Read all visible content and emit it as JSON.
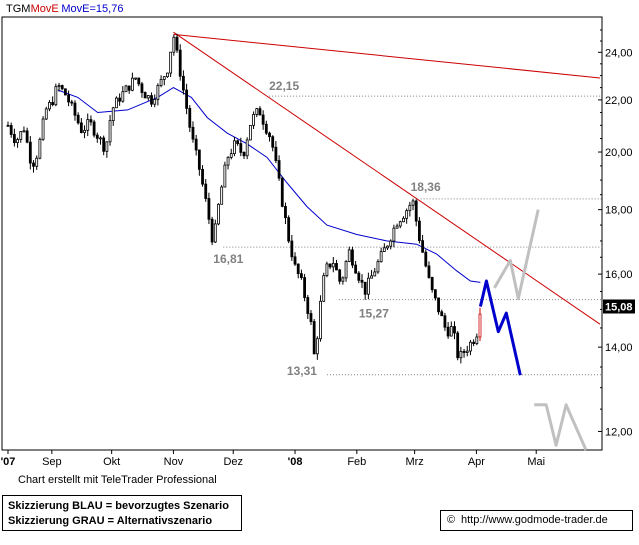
{
  "chart_data": {
    "type": "candlestick",
    "symbol": "TGM",
    "legend": [
      {
        "text": "TGM",
        "color": "#000000"
      },
      {
        "text": "MovE",
        "color": "#cc0000"
      },
      {
        "text": "MovE=15,76",
        "color": "#0000cc"
      }
    ],
    "y_axis": {
      "ticks": [
        "24,00",
        "22,00",
        "20,00",
        "18,00",
        "16,00",
        "14,00",
        "12,00"
      ],
      "tick_values": [
        24,
        22,
        20,
        18,
        16,
        14,
        12
      ],
      "range": [
        11.6,
        25.6
      ],
      "scale": "log",
      "current_value": "15,08",
      "current_number": 15.08
    },
    "x_axis": {
      "labels": [
        "'07",
        "Sep",
        "Okt",
        "Nov",
        "Dez",
        "'08",
        "Feb",
        "Mrz",
        "Apr",
        "Mai"
      ],
      "positions_days": [
        0,
        22,
        52,
        83,
        113,
        144,
        175,
        204,
        235,
        265
      ],
      "range_days": [
        0,
        297
      ]
    },
    "price_path": [
      [
        0,
        21.0
      ],
      [
        4,
        20.4
      ],
      [
        8,
        20.9
      ],
      [
        12,
        19.5
      ],
      [
        15,
        20.0
      ],
      [
        19,
        21.6
      ],
      [
        22,
        21.9
      ],
      [
        25,
        22.6
      ],
      [
        29,
        22.2
      ],
      [
        33,
        21.5
      ],
      [
        37,
        20.8
      ],
      [
        41,
        21.1
      ],
      [
        45,
        20.6
      ],
      [
        49,
        20.1
      ],
      [
        52,
        21.6
      ],
      [
        56,
        22.1
      ],
      [
        60,
        22.5
      ],
      [
        64,
        22.9
      ],
      [
        68,
        22.3
      ],
      [
        72,
        22.0
      ],
      [
        76,
        22.6
      ],
      [
        80,
        23.3
      ],
      [
        83,
        24.8
      ],
      [
        85,
        23.8
      ],
      [
        88,
        22.4
      ],
      [
        92,
        20.6
      ],
      [
        96,
        19.4
      ],
      [
        100,
        18.0
      ],
      [
        103,
        16.9
      ],
      [
        106,
        18.3
      ],
      [
        110,
        19.8
      ],
      [
        114,
        20.3
      ],
      [
        118,
        19.9
      ],
      [
        122,
        21.2
      ],
      [
        126,
        21.6
      ],
      [
        129,
        21.0
      ],
      [
        132,
        20.5
      ],
      [
        135,
        19.3
      ],
      [
        138,
        18.1
      ],
      [
        141,
        17.0
      ],
      [
        144,
        16.2
      ],
      [
        147,
        15.8
      ],
      [
        150,
        15.1
      ],
      [
        152,
        14.6
      ],
      [
        154,
        13.6
      ],
      [
        156,
        14.8
      ],
      [
        159,
        16.1
      ],
      [
        163,
        16.4
      ],
      [
        167,
        15.7
      ],
      [
        171,
        16.7
      ],
      [
        175,
        16.1
      ],
      [
        179,
        15.5
      ],
      [
        183,
        16.0
      ],
      [
        187,
        16.5
      ],
      [
        191,
        17.0
      ],
      [
        195,
        17.6
      ],
      [
        199,
        17.9
      ],
      [
        203,
        18.3
      ],
      [
        206,
        17.2
      ],
      [
        209,
        16.4
      ],
      [
        212,
        15.6
      ],
      [
        216,
        15.0
      ],
      [
        220,
        14.4
      ],
      [
        223,
        14.5
      ],
      [
        226,
        13.7
      ],
      [
        229,
        13.9
      ],
      [
        232,
        14.1
      ],
      [
        235,
        14.3
      ],
      [
        237,
        15.1
      ]
    ],
    "moving_average": [
      [
        25,
        22.4
      ],
      [
        35,
        22.1
      ],
      [
        45,
        21.5
      ],
      [
        60,
        21.6
      ],
      [
        75,
        22.1
      ],
      [
        83,
        22.5
      ],
      [
        92,
        22.1
      ],
      [
        100,
        21.3
      ],
      [
        110,
        20.7
      ],
      [
        120,
        20.3
      ],
      [
        130,
        19.8
      ],
      [
        140,
        18.9
      ],
      [
        150,
        18.1
      ],
      [
        160,
        17.5
      ],
      [
        175,
        17.2
      ],
      [
        190,
        17.0
      ],
      [
        205,
        16.9
      ],
      [
        215,
        16.6
      ],
      [
        225,
        16.1
      ],
      [
        232,
        15.8
      ],
      [
        237,
        15.76
      ]
    ],
    "trendlines": [
      {
        "color": "#cc0000",
        "points": [
          [
            83,
            24.8
          ],
          [
            297,
            22.9
          ]
        ]
      },
      {
        "color": "#cc0000",
        "points": [
          [
            83,
            24.9
          ],
          [
            297,
            14.6
          ]
        ]
      }
    ],
    "levels": [
      {
        "label": "22,15",
        "value": 22.15,
        "from_day": 131
      },
      {
        "label": "18,36",
        "value": 18.36,
        "from_day": 207
      },
      {
        "label": "16,81",
        "value": 16.81,
        "from_day": 108
      },
      {
        "label": "15,27",
        "value": 15.27,
        "from_day": 166
      },
      {
        "label": "13,31",
        "value": 13.31,
        "from_day": 160
      }
    ],
    "scenario_blue": {
      "color": "#0000cc",
      "points": [
        [
          237,
          15.08
        ],
        [
          240,
          15.8
        ],
        [
          246,
          14.4
        ],
        [
          250,
          14.9
        ],
        [
          257,
          13.3
        ]
      ]
    },
    "scenario_gray": [
      {
        "color": "#c0c0c0",
        "points": [
          [
            244,
            15.6
          ],
          [
            252,
            16.4
          ],
          [
            256,
            15.3
          ],
          [
            266,
            18.0
          ]
        ]
      },
      {
        "color": "#c0c0c0",
        "points": [
          [
            264,
            12.6
          ],
          [
            270,
            12.6
          ],
          [
            275,
            11.7
          ],
          [
            280,
            12.6
          ],
          [
            290,
            11.6
          ]
        ]
      }
    ]
  },
  "footer": {
    "credit": "Chart erstellt mit TeleTrader Professional",
    "scenario_blue": "Skizzierung BLAU = bevorzugtes Szenario",
    "scenario_gray": "Skizzierung GRAU = Alternativszenario",
    "source_icon": "copyright-icon",
    "source_symbol": "©",
    "source_url": "http://www.godmode-trader.de"
  }
}
